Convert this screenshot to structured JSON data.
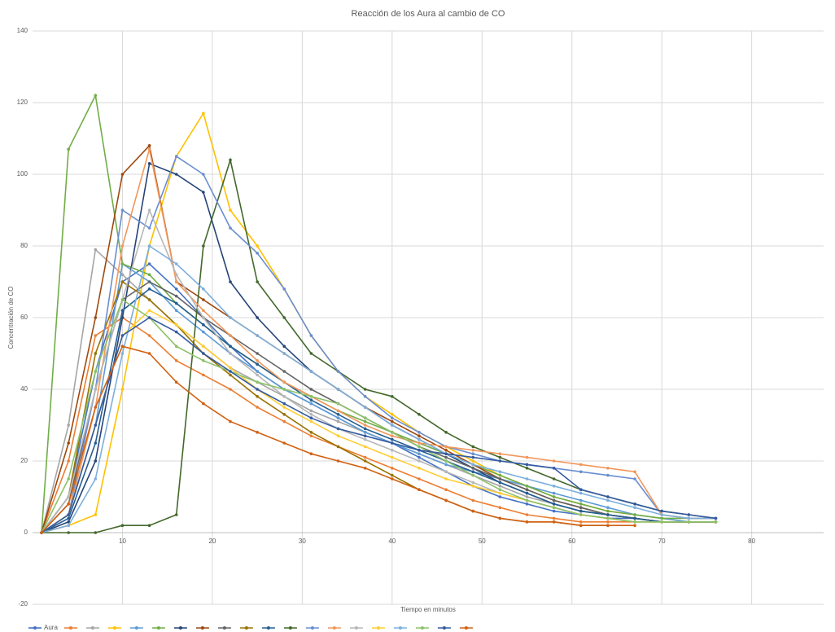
{
  "chart_data": {
    "type": "line",
    "title": "Reacción de los Aura al cambio de CO",
    "x_label": "Tiempo en minutos",
    "y_label": "Concentración de CO",
    "xlim": [
      0,
      88
    ],
    "xticks": [
      10,
      20,
      30,
      40,
      50,
      60,
      70,
      80
    ],
    "ylim": [
      -20,
      140
    ],
    "yticks": [
      -20,
      0,
      20,
      40,
      60,
      80,
      100,
      120,
      140
    ],
    "grid": true,
    "legend": "bottom",
    "x": [
      1,
      4,
      7,
      10,
      13,
      16,
      19,
      22,
      25,
      28,
      31,
      34,
      37,
      40,
      43,
      46,
      49,
      52,
      55,
      58,
      61,
      64,
      67,
      70,
      73,
      76
    ],
    "series": [
      {
        "name": "Aura",
        "color": "#4472c4",
        "values": [
          0,
          10,
          45,
          70,
          75,
          68,
          60,
          52,
          45,
          40,
          36,
          32,
          28,
          25,
          21,
          17,
          13,
          10,
          8,
          6,
          5,
          4,
          4,
          3,
          3,
          3
        ]
      },
      {
        "color": "#ed7d31",
        "values": [
          0,
          20,
          55,
          60,
          55,
          48,
          44,
          40,
          35,
          31,
          27,
          24,
          21,
          18,
          15,
          12,
          9,
          7,
          5,
          4,
          3,
          3,
          3,
          3,
          3,
          3
        ]
      },
      {
        "color": "#a5a5a5",
        "values": [
          0,
          30,
          79,
          72,
          65,
          58,
          52,
          46,
          42,
          38,
          34,
          31,
          28,
          25,
          22,
          19,
          16,
          13,
          10,
          8,
          6,
          5,
          4,
          3,
          3,
          3
        ]
      },
      {
        "color": "#ffc000",
        "values": [
          0,
          2,
          5,
          40,
          80,
          105,
          117,
          90,
          80,
          68,
          55,
          45,
          38,
          33,
          28,
          24,
          20,
          16,
          13,
          10,
          8,
          6,
          5,
          4,
          3,
          3
        ]
      },
      {
        "color": "#5b9bd5",
        "values": [
          0,
          5,
          30,
          75,
          70,
          62,
          56,
          50,
          45,
          40,
          36,
          32,
          28,
          25,
          22,
          19,
          17,
          15,
          13,
          11,
          9,
          7,
          5,
          4,
          3,
          3
        ]
      },
      {
        "color": "#70ad47",
        "values": [
          0,
          107,
          122,
          75,
          72,
          64,
          58,
          52,
          47,
          42,
          38,
          34,
          31,
          28,
          25,
          22,
          19,
          16,
          13,
          10,
          8,
          6,
          5,
          4,
          4,
          4
        ]
      },
      {
        "color": "#264478",
        "values": [
          0,
          3,
          20,
          60,
          103,
          100,
          95,
          70,
          60,
          52,
          45,
          40,
          35,
          30,
          26,
          22,
          18,
          14,
          11,
          8,
          6,
          5,
          4,
          3,
          3,
          3
        ]
      },
      {
        "color": "#9e480e",
        "values": [
          0,
          25,
          60,
          100,
          108,
          70,
          65,
          60,
          55,
          50,
          45,
          40,
          35,
          31,
          27,
          23,
          19,
          15,
          12,
          9,
          7,
          5,
          4,
          3,
          3,
          3
        ]
      },
      {
        "color": "#636363",
        "values": [
          0,
          8,
          40,
          65,
          70,
          66,
          60,
          55,
          50,
          45,
          40,
          36,
          32,
          28,
          24,
          21,
          18,
          15,
          12,
          9,
          7,
          5,
          4,
          3,
          3,
          3
        ]
      },
      {
        "color": "#997300",
        "values": [
          0,
          10,
          50,
          70,
          65,
          58,
          50,
          44,
          38,
          33,
          28,
          24,
          20,
          16,
          12,
          9,
          6,
          4,
          3,
          3,
          2,
          2,
          null,
          null,
          null,
          null
        ]
      },
      {
        "color": "#255e91",
        "values": [
          0,
          4,
          25,
          62,
          68,
          64,
          58,
          52,
          47,
          42,
          37,
          33,
          29,
          26,
          23,
          20,
          17,
          14,
          11,
          8,
          6,
          5,
          4,
          3,
          3,
          3
        ]
      },
      {
        "color": "#43682b",
        "values": [
          0,
          0,
          0,
          2,
          2,
          5,
          80,
          104,
          70,
          60,
          50,
          45,
          40,
          38,
          33,
          28,
          24,
          21,
          18,
          15,
          12,
          10,
          8,
          6,
          5,
          4
        ]
      },
      {
        "color": "#698ed0",
        "values": [
          0,
          5,
          40,
          90,
          85,
          105,
          100,
          85,
          78,
          68,
          55,
          45,
          38,
          32,
          28,
          24,
          22,
          20,
          19,
          18,
          17,
          16,
          15,
          5,
          4,
          4
        ]
      },
      {
        "color": "#f1975a",
        "values": [
          0,
          5,
          35,
          80,
          107,
          70,
          62,
          55,
          48,
          42,
          38,
          34,
          30,
          27,
          25,
          24,
          23,
          22,
          21,
          20,
          19,
          18,
          17,
          5,
          4,
          4
        ]
      },
      {
        "color": "#b7b7b7",
        "values": [
          0,
          10,
          40,
          65,
          90,
          72,
          60,
          50,
          44,
          38,
          33,
          29,
          26,
          23,
          20,
          17,
          14,
          11,
          9,
          7,
          5,
          4,
          3,
          3,
          3,
          3
        ]
      },
      {
        "color": "#ffcd33",
        "values": [
          0,
          5,
          30,
          55,
          62,
          58,
          52,
          46,
          40,
          35,
          31,
          27,
          24,
          21,
          18,
          15,
          13,
          11,
          9,
          7,
          5,
          4,
          3,
          3,
          3,
          3
        ]
      },
      {
        "color": "#7cafdd",
        "values": [
          0,
          2,
          15,
          50,
          80,
          75,
          68,
          60,
          55,
          50,
          45,
          40,
          35,
          30,
          26,
          22,
          19,
          17,
          15,
          13,
          11,
          9,
          7,
          5,
          4,
          4
        ]
      },
      {
        "color": "#8cc168",
        "values": [
          0,
          15,
          45,
          65,
          60,
          52,
          48,
          45,
          42,
          40,
          38,
          36,
          32,
          28,
          24,
          20,
          16,
          12,
          9,
          7,
          5,
          4,
          3,
          3,
          3,
          3
        ]
      },
      {
        "color": "#335aa1",
        "values": [
          0,
          5,
          30,
          55,
          60,
          56,
          50,
          45,
          40,
          36,
          32,
          29,
          27,
          25,
          23,
          22,
          21,
          20,
          19,
          18,
          12,
          10,
          8,
          6,
          5,
          4
        ]
      },
      {
        "color": "#d26012",
        "values": [
          0,
          8,
          35,
          52,
          50,
          42,
          36,
          31,
          28,
          25,
          22,
          20,
          18,
          15,
          12,
          9,
          6,
          4,
          3,
          3,
          2,
          2,
          2,
          null,
          null,
          null
        ]
      }
    ]
  }
}
